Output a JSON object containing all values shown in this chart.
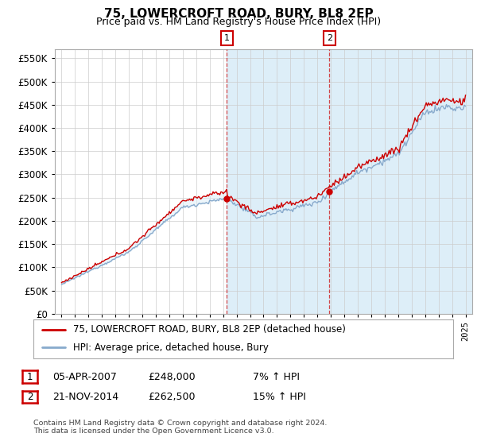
{
  "title": "75, LOWERCROFT ROAD, BURY, BL8 2EP",
  "subtitle": "Price paid vs. HM Land Registry's House Price Index (HPI)",
  "legend_line1": "75, LOWERCROFT ROAD, BURY, BL8 2EP (detached house)",
  "legend_line2": "HPI: Average price, detached house, Bury",
  "footer": "Contains HM Land Registry data © Crown copyright and database right 2024.\nThis data is licensed under the Open Government Licence v3.0.",
  "sale1_date": "05-APR-2007",
  "sale1_price": 248000,
  "sale1_label": "7% ↑ HPI",
  "sale1_x": 2007.27,
  "sale2_date": "21-NOV-2014",
  "sale2_price": 262500,
  "sale2_label": "15% ↑ HPI",
  "sale2_x": 2014.9,
  "red_color": "#cc0000",
  "blue_color": "#88aacc",
  "blue_fill": "#ddeef8",
  "ylim": [
    0,
    570000
  ],
  "yticks": [
    0,
    50000,
    100000,
    150000,
    200000,
    250000,
    300000,
    350000,
    400000,
    450000,
    500000,
    550000
  ],
  "xlim": [
    1994.5,
    2025.5
  ],
  "x_start": 1995,
  "x_end": 2025
}
